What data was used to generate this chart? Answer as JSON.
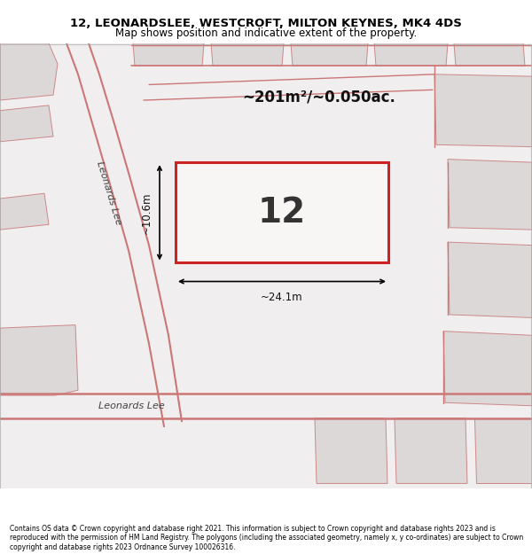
{
  "title_line1": "12, LEONARDSLEE, WESTCROFT, MILTON KEYNES, MK4 4DS",
  "title_line2": "Map shows position and indicative extent of the property.",
  "footer_text": "Contains OS data © Crown copyright and database right 2021. This information is subject to Crown copyright and database rights 2023 and is reproduced with the permission of HM Land Registry. The polygons (including the associated geometry, namely x, y co-ordinates) are subject to Crown copyright and database rights 2023 Ordnance Survey 100026316.",
  "area_text": "~201m²/~0.050ac.",
  "width_text": "~24.1m",
  "height_text": "~10.6m",
  "number_text": "12",
  "map_bg": "#f0eeee",
  "road_color": "#cc7777",
  "highlight_color": "#cc2222",
  "building_fc": "#ddd8d8",
  "building_ec": "#cc8888",
  "street_label_diagonal": "Leonards Lee",
  "street_label_horizontal": "Leonards Lee"
}
